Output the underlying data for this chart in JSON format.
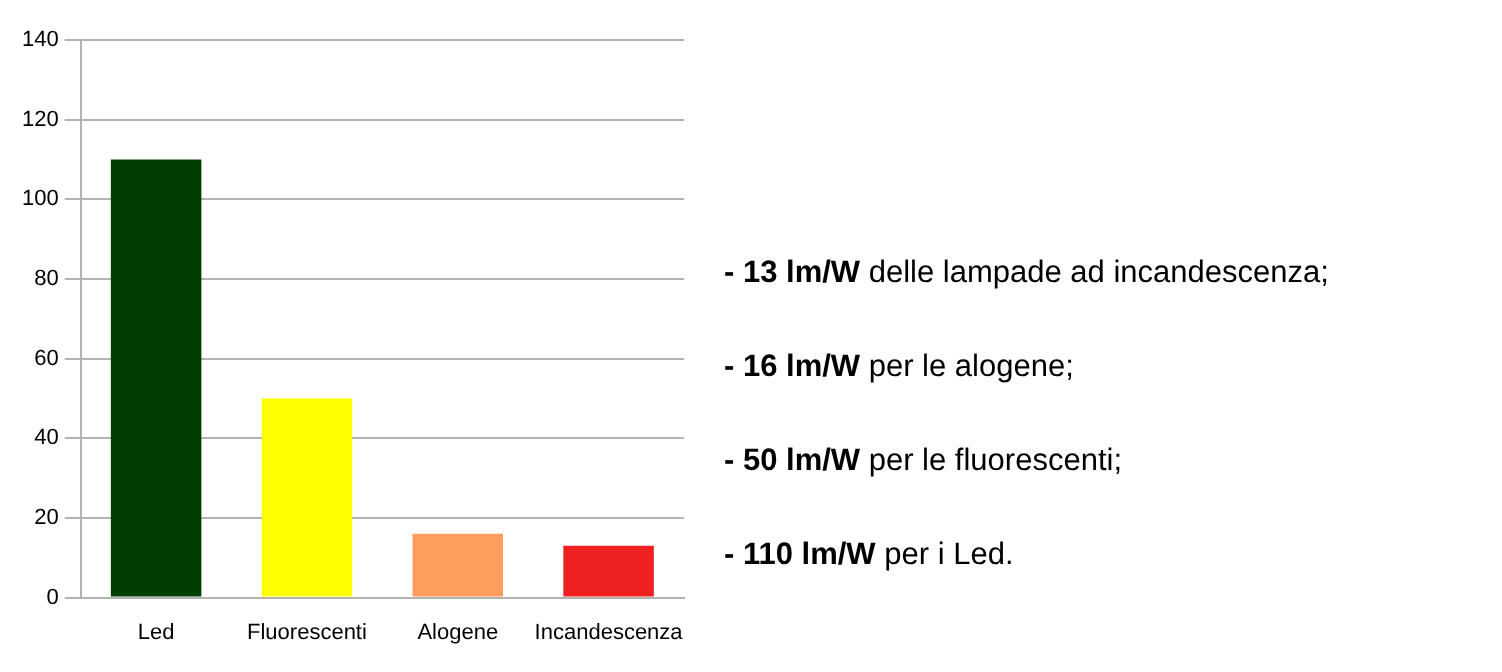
{
  "chart_data": {
    "type": "bar",
    "categories": [
      "Led",
      "Fluorescenti",
      "Alogene",
      "Incandescenza"
    ],
    "values": [
      110,
      50,
      16,
      13
    ],
    "colors": [
      "#003d00",
      "#ffff00",
      "#ff9e5e",
      "#ee2020"
    ],
    "ylim": [
      0,
      140
    ],
    "yticks": [
      0,
      20,
      40,
      60,
      80,
      100,
      120,
      140
    ],
    "grid": "y",
    "legend": false,
    "annotations": [
      "- 13 lm/W delle lampade ad incandescenza;",
      "- 16 lm/W per le alogene;",
      "- 50 lm/W per le fluorescenti;",
      "- 110 lm/W per i Led."
    ]
  }
}
